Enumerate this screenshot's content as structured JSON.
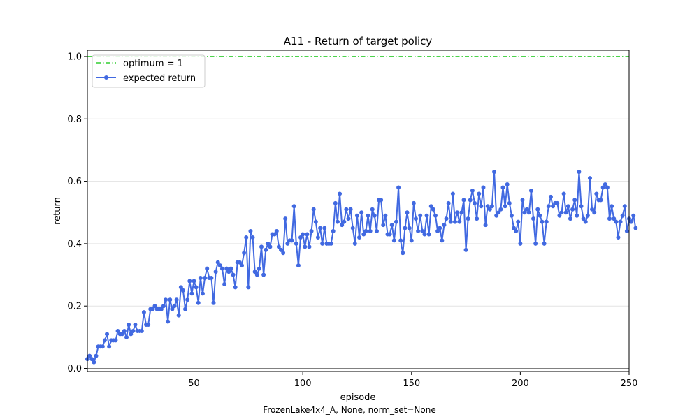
{
  "chart_data": {
    "type": "line",
    "title": "A11 - Return of target policy",
    "xlabel": "episode",
    "ylabel": "return",
    "footer": "FrozenLake4x4_A, None, norm_set=None",
    "xlim": [
      1,
      250
    ],
    "ylim": [
      -0.01,
      1.02
    ],
    "x_ticks": [
      50,
      100,
      150,
      200,
      250
    ],
    "y_ticks": [
      0.0,
      0.2,
      0.4,
      0.6,
      0.8,
      1.0
    ],
    "y_tick_labels": [
      "0.0",
      "0.2",
      "0.4",
      "0.6",
      "0.8",
      "1.0"
    ],
    "grid": "horizontal",
    "legend_position": "upper-left",
    "reference_lines": [
      {
        "name": "optimum = 1",
        "y": 1.0,
        "color": "#32cd32",
        "style": "dash-dot"
      },
      {
        "y": 0.0,
        "color": "#808080",
        "style": "solid"
      }
    ],
    "series": [
      {
        "name": "expected return",
        "color": "#4169e1",
        "marker": "circle",
        "x_start": 1,
        "values": [
          0.03,
          0.04,
          0.03,
          0.02,
          0.04,
          0.07,
          0.07,
          0.07,
          0.09,
          0.11,
          0.07,
          0.09,
          0.09,
          0.09,
          0.12,
          0.11,
          0.11,
          0.12,
          0.1,
          0.14,
          0.11,
          0.12,
          0.14,
          0.12,
          0.12,
          0.12,
          0.18,
          0.14,
          0.14,
          0.19,
          0.19,
          0.2,
          0.19,
          0.19,
          0.19,
          0.2,
          0.22,
          0.15,
          0.22,
          0.19,
          0.2,
          0.22,
          0.17,
          0.26,
          0.25,
          0.19,
          0.22,
          0.28,
          0.24,
          0.28,
          0.26,
          0.21,
          0.29,
          0.24,
          0.29,
          0.32,
          0.29,
          0.29,
          0.21,
          0.31,
          0.34,
          0.33,
          0.32,
          0.27,
          0.32,
          0.31,
          0.32,
          0.3,
          0.26,
          0.34,
          0.34,
          0.33,
          0.37,
          0.42,
          0.26,
          0.44,
          0.42,
          0.31,
          0.3,
          0.32,
          0.39,
          0.3,
          0.38,
          0.4,
          0.39,
          0.43,
          0.43,
          0.44,
          0.39,
          0.38,
          0.37,
          0.48,
          0.4,
          0.41,
          0.41,
          0.52,
          0.4,
          0.33,
          0.42,
          0.43,
          0.39,
          0.43,
          0.39,
          0.44,
          0.51,
          0.47,
          0.42,
          0.45,
          0.4,
          0.45,
          0.4,
          0.4,
          0.4,
          0.44,
          0.53,
          0.47,
          0.56,
          0.46,
          0.47,
          0.51,
          0.48,
          0.51,
          0.45,
          0.4,
          0.49,
          0.42,
          0.5,
          0.43,
          0.44,
          0.49,
          0.44,
          0.51,
          0.49,
          0.44,
          0.54,
          0.54,
          0.46,
          0.49,
          0.43,
          0.43,
          0.46,
          0.41,
          0.47,
          0.58,
          0.41,
          0.37,
          0.45,
          0.5,
          0.45,
          0.41,
          0.53,
          0.48,
          0.44,
          0.49,
          0.44,
          0.43,
          0.49,
          0.43,
          0.52,
          0.51,
          0.49,
          0.44,
          0.45,
          0.41,
          0.46,
          0.48,
          0.53,
          0.47,
          0.56,
          0.47,
          0.5,
          0.47,
          0.5,
          0.54,
          0.38,
          0.48,
          0.54,
          0.57,
          0.53,
          0.48,
          0.56,
          0.52,
          0.58,
          0.46,
          0.52,
          0.51,
          0.52,
          0.63,
          0.49,
          0.5,
          0.51,
          0.58,
          0.52,
          0.59,
          0.53,
          0.49,
          0.45,
          0.44,
          0.47,
          0.4,
          0.54,
          0.5,
          0.51,
          0.5,
          0.57,
          0.48,
          0.4,
          0.51,
          0.49,
          0.47,
          0.4,
          0.47,
          0.52,
          0.55,
          0.52,
          0.53,
          0.53,
          0.49,
          0.5,
          0.56,
          0.5,
          0.52,
          0.48,
          0.51,
          0.54,
          0.49,
          0.63,
          0.52,
          0.48,
          0.47,
          0.49,
          0.61,
          0.51,
          0.5,
          0.56,
          0.54,
          0.54,
          0.58,
          0.59,
          0.58,
          0.48,
          0.52,
          0.48,
          0.47,
          0.42,
          0.47,
          0.49,
          0.52,
          0.44,
          0.48,
          0.47,
          0.49,
          0.45
        ]
      }
    ]
  }
}
